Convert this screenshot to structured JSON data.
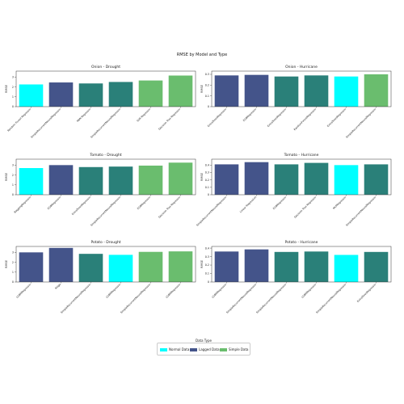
{
  "figure_title": "RMSE by Model and Type",
  "colors": {
    "Normal Data": "#00ffff",
    "Lagged Data": "#44548a",
    "Simple Data": "#6abd6e",
    "mid": "#2a8079"
  },
  "legend": {
    "title": "Data Type",
    "items": [
      {
        "label": "Normal Data",
        "color": "#00ffff"
      },
      {
        "label": "Lagged Data",
        "color": "#44548a"
      },
      {
        "label": "Simple Data",
        "color": "#6abd6e"
      }
    ]
  },
  "chart_data": [
    {
      "type": "bar",
      "title": "Onion - Drought",
      "ylabel": "RMSE",
      "ylim": [
        0,
        3.6
      ],
      "yticks": [
        0,
        1,
        2,
        3
      ],
      "categories": [
        "Random Forest Regressor",
        "SimpleRecurrentNeuralRegressor",
        "KNN Regressor",
        "SimpleRecurrentNeuralRegressor",
        "SVR Regressor",
        "Decision Tree Regressor"
      ],
      "values": [
        2.25,
        2.45,
        2.35,
        2.5,
        2.65,
        3.15
      ],
      "bar_colors": [
        "#00ffff",
        "#44548a",
        "#2a8079",
        "#2a8079",
        "#6abd6e",
        "#6abd6e"
      ]
    },
    {
      "type": "bar",
      "title": "Onion - Hurricane",
      "ylabel": "RMSE",
      "ylim": [
        0,
        0.33
      ],
      "yticks": [
        0,
        0.1,
        0.2,
        0.3
      ],
      "categories": [
        "ExtraTreesRegressor",
        "XGBRegressor",
        "ExtraTreesRegressor",
        "RandomForestRegressor",
        "ExtraTreesRegressor",
        "SimpleRecurrentNeuralRegressor"
      ],
      "values": [
        0.29,
        0.295,
        0.28,
        0.29,
        0.28,
        0.3
      ],
      "bar_colors": [
        "#44548a",
        "#44548a",
        "#2a8079",
        "#2a8079",
        "#00ffff",
        "#6abd6e"
      ]
    },
    {
      "type": "bar",
      "title": "Tomato - Drought",
      "ylabel": "RMSE",
      "ylim": [
        0,
        3.6
      ],
      "yticks": [
        0,
        1,
        2,
        3
      ],
      "categories": [
        "BaggingRegressor",
        "XGBRegressor",
        "ExtraTreesRegressor",
        "SimpleRecurrentNeuralRegressor",
        "XGBRegressor",
        "Decision Tree Regressor"
      ],
      "values": [
        2.7,
        3.0,
        2.8,
        2.85,
        2.95,
        3.25
      ],
      "bar_colors": [
        "#00ffff",
        "#44548a",
        "#2a8079",
        "#2a8079",
        "#6abd6e",
        "#6abd6e"
      ]
    },
    {
      "type": "bar",
      "title": "Tomato - Hurricane",
      "ylabel": "RMSE",
      "ylim": [
        0,
        0.48
      ],
      "yticks": [
        0,
        0.1,
        0.2,
        0.3,
        0.4
      ],
      "categories": [
        "SimpleRecurrentNeuralRegressor",
        "Linear Regression",
        "XGBRegressor",
        "Decision Tree Regressor",
        "MLPRegressor",
        "SimpleRecurrentNeuralRegressor"
      ],
      "values": [
        0.41,
        0.44,
        0.41,
        0.43,
        0.4,
        0.41
      ],
      "bar_colors": [
        "#44548a",
        "#44548a",
        "#2a8079",
        "#2a8079",
        "#00ffff",
        "#2a8079"
      ]
    },
    {
      "type": "bar",
      "title": "Potato - Drought",
      "ylabel": "RMSE",
      "ylim": [
        0,
        3.6
      ],
      "yticks": [
        0,
        1,
        2,
        3
      ],
      "categories": [
        "LGBMRegressor",
        "Ridge",
        "SimpleRecurrentNeuralRegressor",
        "LGBMRegressor",
        "SimpleRecurrentNeuralRegressor",
        "LGBMRegressor"
      ],
      "values": [
        3.0,
        3.45,
        2.85,
        2.75,
        3.05,
        3.1
      ],
      "bar_colors": [
        "#44548a",
        "#44548a",
        "#2a8079",
        "#00ffff",
        "#6abd6e",
        "#6abd6e"
      ]
    },
    {
      "type": "bar",
      "title": "Potato - Hurricane",
      "ylabel": "RMSE",
      "ylim": [
        0,
        0.42
      ],
      "yticks": [
        0,
        0.1,
        0.2,
        0.3,
        0.4
      ],
      "categories": [
        "LGBMRegressor",
        "SimpleRecurrentNeuralRegressor",
        "SimpleRecurrentNeuralRegressor",
        "LGBMRegressor",
        "SimpleRecurrentNeuralRegressor",
        "ExtraTreesRegressor"
      ],
      "values": [
        0.36,
        0.385,
        0.355,
        0.36,
        0.32,
        0.355
      ],
      "bar_colors": [
        "#44548a",
        "#44548a",
        "#2a8079",
        "#2a8079",
        "#00ffff",
        "#2a8079"
      ]
    }
  ]
}
